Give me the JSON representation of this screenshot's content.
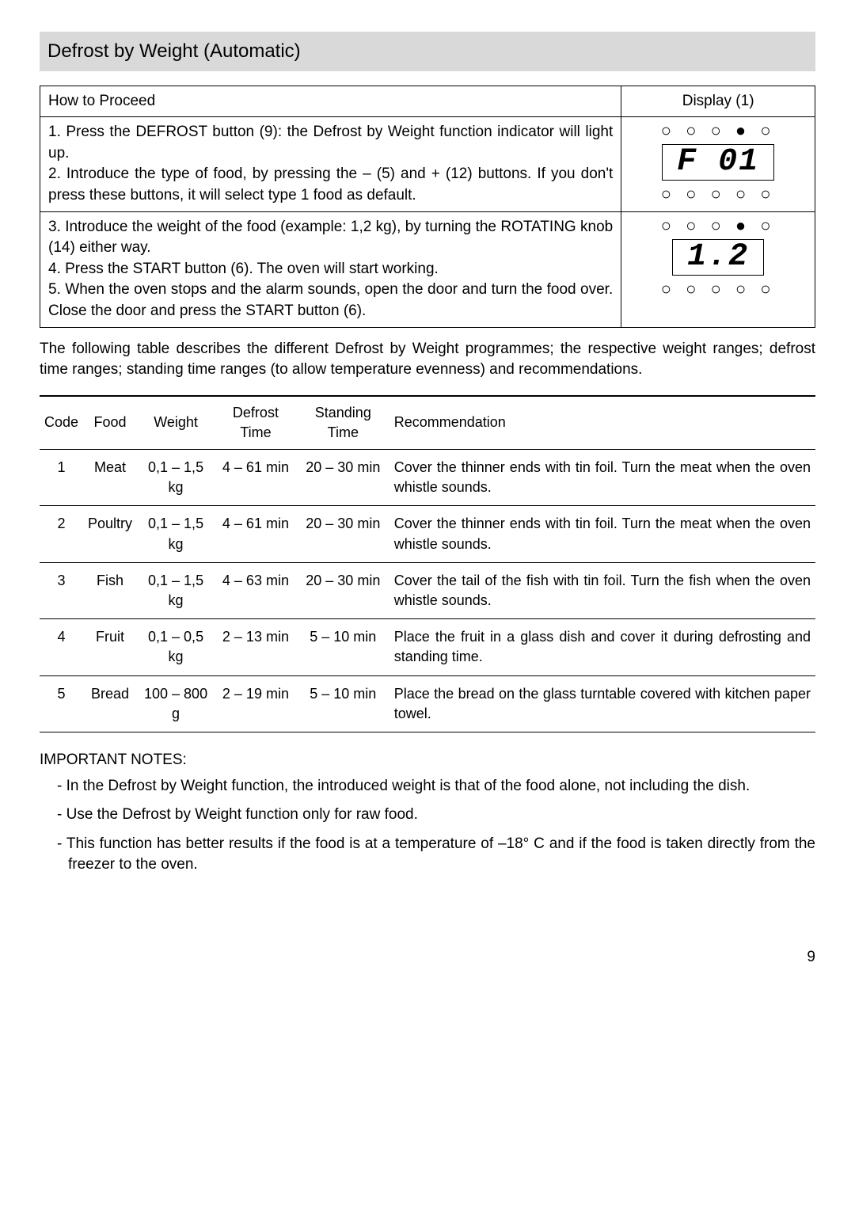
{
  "section_title": "Defrost by Weight (Automatic)",
  "proc_header_left": "How to Proceed",
  "proc_header_right": "Display (1)",
  "steps_block1": [
    "1. Press the DEFROST button (9): the Defrost by Weight function indicator will light up.",
    "2. Introduce the type of food, by pressing the – (5) and + (12) buttons. If you don't press these buttons, it will select type 1 food as default."
  ],
  "steps_block2": [
    "3. Introduce the weight of the food (example: 1,2 kg), by turning the ROTATING knob (14) either way.",
    "4. Press the START button (6). The oven will start working.",
    "5. When the oven stops and the alarm sounds, open the door and turn the food over. Close the door and press the START button (6)."
  ],
  "display1_top_dots": "○ ○ ○ ● ○",
  "display1_seg": "F  01",
  "display1_bottom_dots": "○ ○ ○ ○ ○",
  "display2_top_dots": "○ ○ ○ ● ○",
  "display2_seg": "1.2",
  "display2_bottom_dots": "○ ○ ○ ○ ○",
  "intro": "The following table describes the different Defrost by Weight programmes; the respective weight ranges; defrost time ranges; standing time ranges (to allow temperature evenness) and recommendations.",
  "columns": [
    "Code",
    "Food",
    "Weight",
    "Defrost Time",
    "Standing Time",
    "Recommendation"
  ],
  "rows": [
    {
      "code": "1",
      "food": "Meat",
      "weight": "0,1 – 1,5 kg",
      "defrost": "4 – 61 min",
      "standing": "20 – 30 min",
      "rec": "Cover the thinner ends with tin foil. Turn the meat when the oven whistle sounds."
    },
    {
      "code": "2",
      "food": "Poultry",
      "weight": "0,1 – 1,5 kg",
      "defrost": "4 – 61 min",
      "standing": "20 – 30 min",
      "rec": "Cover the thinner ends with tin foil. Turn the meat when the oven whistle sounds."
    },
    {
      "code": "3",
      "food": "Fish",
      "weight": "0,1 – 1,5 kg",
      "defrost": "4 – 63 min",
      "standing": "20 – 30 min",
      "rec": "Cover the tail of the fish with tin foil. Turn the fish when the oven whistle sounds."
    },
    {
      "code": "4",
      "food": "Fruit",
      "weight": "0,1 – 0,5 kg",
      "defrost": "2 – 13 min",
      "standing": "5 – 10 min",
      "rec": "Place the fruit in a glass dish and cover it during defrosting and standing time."
    },
    {
      "code": "5",
      "food": "Bread",
      "weight": "100 – 800 g",
      "defrost": "2 – 19 min",
      "standing": "5 – 10 min",
      "rec": "Place the bread on the glass turntable covered with kitchen paper towel."
    }
  ],
  "notes_heading": "IMPORTANT NOTES:",
  "notes": [
    "In the Defrost by Weight function, the introduced weight is that of the food alone, not including the dish.",
    "Use the Defrost by Weight function only for raw food.",
    "This function has better results if the food is at a temperature of –18° C and if the food is taken directly from the freezer to the oven."
  ],
  "page_number": "9"
}
